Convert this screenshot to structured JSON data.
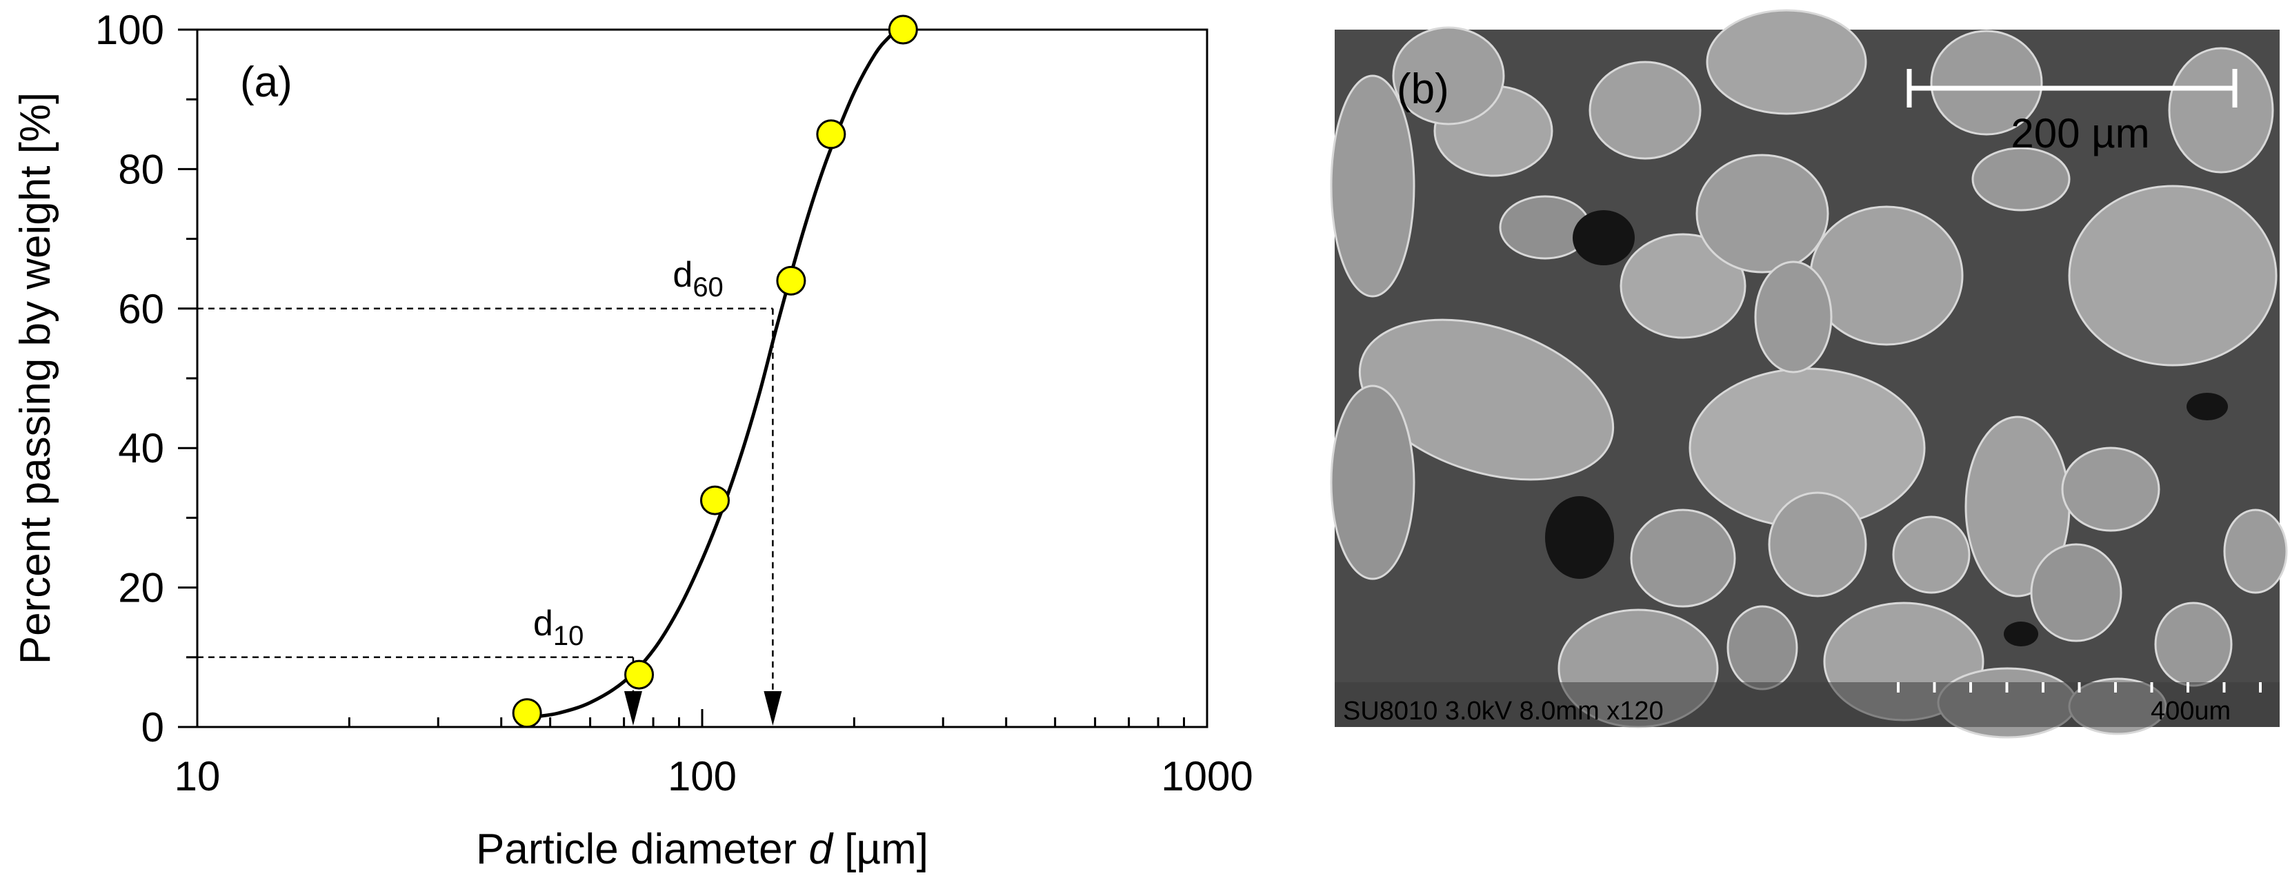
{
  "chart_data": {
    "type": "scatter",
    "panel_label": "(a)",
    "xlabel_main": "Particle diameter ",
    "xlabel_var": "d",
    "xlabel_unit": " [µm]",
    "ylabel": "Percent passing by weight [%]",
    "xscale": "log",
    "xlim": [
      10,
      1000
    ],
    "ylim": [
      0,
      100
    ],
    "x_ticks": [
      10,
      100,
      1000
    ],
    "x_tick_labels": [
      "10",
      "100",
      "1000"
    ],
    "y_ticks": [
      0,
      20,
      40,
      60,
      80,
      100
    ],
    "y_tick_labels": [
      "0",
      "20",
      "40",
      "60",
      "80",
      "100"
    ],
    "grid": false,
    "series": [
      {
        "marker_color": "#FFFF00",
        "x": [
          45,
          75,
          106,
          150,
          180,
          250
        ],
        "y": [
          2,
          7.5,
          32.5,
          64,
          85,
          100
        ]
      }
    ],
    "fit_curve": {
      "x": [
        47,
        52,
        60,
        70,
        80,
        90,
        100,
        110,
        120,
        130,
        140,
        150,
        160,
        170,
        180,
        200,
        220,
        235,
        245,
        250
      ],
      "y": [
        1.5,
        2,
        3.5,
        6.5,
        11,
        17,
        24,
        31.5,
        39.5,
        48,
        57,
        65,
        72,
        78,
        83,
        91,
        96.5,
        99,
        100,
        100
      ]
    },
    "annotations": [
      {
        "label_main": "d",
        "label_sub": "10",
        "x": 73,
        "y": 10
      },
      {
        "label_main": "d",
        "label_sub": "60",
        "x": 138,
        "y": 60
      }
    ]
  },
  "micrograph": {
    "panel_label": "(b)",
    "scale_bar_label": "200 µm",
    "info_text": "SU8010 3.0kV 8.0mm x120",
    "ruler_label": "400um",
    "background_color": "#4a4a4a",
    "particle_color": "#9a9a9a"
  }
}
